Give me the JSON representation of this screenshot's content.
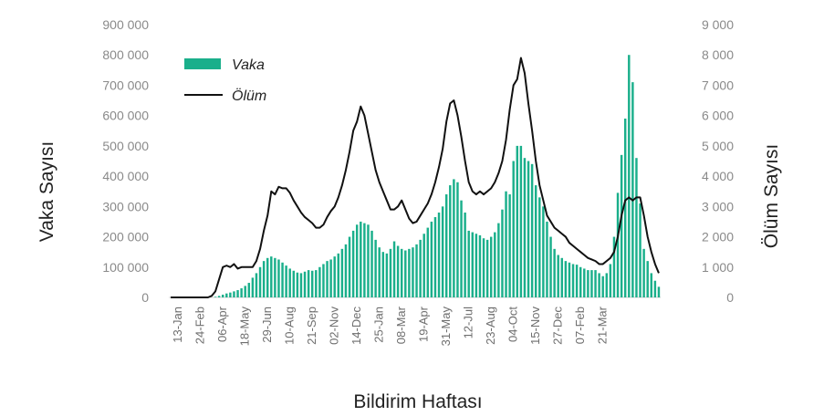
{
  "chart_data": {
    "type": "bar+line",
    "title": "",
    "xlabel": "Bildirim Haftası",
    "ylabel_left": "Vaka Sayısı",
    "ylabel_right": "Ölüm Sayısı",
    "ylim_left": [
      0,
      900000
    ],
    "ylim_right": [
      0,
      9000
    ],
    "left_ticks": [
      "0",
      "100 000",
      "200 000",
      "300 000",
      "400 000",
      "500 000",
      "600 000",
      "700 000",
      "800 000",
      "900 000"
    ],
    "right_ticks": [
      "0",
      "1 000",
      "2 000",
      "3 000",
      "4 000",
      "5 000",
      "6 000",
      "7 000",
      "8 000",
      "9 000"
    ],
    "x_tick_labels": [
      "13-Jan",
      "24-Feb",
      "06-Apr",
      "18-May",
      "29-Jun",
      "10-Aug",
      "21-Sep",
      "02-Nov",
      "14-Dec",
      "25-Jan",
      "08-Mar",
      "19-Apr",
      "31-May",
      "12-Jul",
      "23-Aug",
      "04-Oct",
      "15-Nov",
      "27-Dec",
      "07-Feb",
      "21-Mar"
    ],
    "legend_position": "top-left",
    "colors": {
      "cases": "#1aaf8b",
      "deaths": "#000000"
    },
    "series": [
      {
        "name": "Vaka",
        "type": "bar",
        "axis": "left",
        "values": [
          0,
          0,
          0,
          0,
          0,
          0,
          0,
          0,
          0,
          0,
          0,
          0,
          2000,
          5000,
          9000,
          13000,
          16000,
          20000,
          24000,
          30000,
          38000,
          48000,
          65000,
          80000,
          100000,
          120000,
          130000,
          135000,
          130000,
          125000,
          115000,
          105000,
          95000,
          88000,
          82000,
          80000,
          85000,
          90000,
          88000,
          90000,
          100000,
          110000,
          120000,
          125000,
          135000,
          145000,
          160000,
          175000,
          200000,
          220000,
          240000,
          250000,
          245000,
          240000,
          220000,
          190000,
          165000,
          150000,
          145000,
          160000,
          185000,
          170000,
          160000,
          155000,
          160000,
          165000,
          175000,
          190000,
          210000,
          230000,
          250000,
          265000,
          280000,
          300000,
          340000,
          370000,
          390000,
          380000,
          320000,
          280000,
          220000,
          215000,
          210000,
          205000,
          195000,
          190000,
          200000,
          215000,
          245000,
          290000,
          350000,
          340000,
          450000,
          500000,
          500000,
          460000,
          450000,
          440000,
          370000,
          330000,
          300000,
          250000,
          200000,
          160000,
          140000,
          130000,
          120000,
          115000,
          110000,
          108000,
          100000,
          95000,
          90000,
          90000,
          90000,
          80000,
          70000,
          80000,
          110000,
          200000,
          345000,
          470000,
          590000,
          800000,
          710000,
          460000,
          310000,
          160000,
          120000,
          80000,
          55000,
          35000
        ]
      },
      {
        "name": "Ölüm",
        "type": "line",
        "axis": "right",
        "values": [
          0,
          0,
          0,
          0,
          0,
          0,
          0,
          0,
          0,
          0,
          0,
          50,
          200,
          600,
          1000,
          1050,
          1000,
          1100,
          950,
          1000,
          1000,
          1000,
          1000,
          1200,
          1600,
          2200,
          2700,
          3500,
          3400,
          3650,
          3600,
          3600,
          3450,
          3200,
          3000,
          2800,
          2650,
          2550,
          2450,
          2300,
          2300,
          2400,
          2650,
          2850,
          3000,
          3300,
          3700,
          4200,
          4800,
          5500,
          5800,
          6300,
          6000,
          5400,
          4800,
          4200,
          3800,
          3500,
          3200,
          2900,
          2900,
          3000,
          3200,
          2900,
          2600,
          2450,
          2500,
          2700,
          2900,
          3100,
          3400,
          3800,
          4300,
          4900,
          5800,
          6400,
          6500,
          6000,
          5300,
          4500,
          3800,
          3500,
          3400,
          3500,
          3400,
          3500,
          3600,
          3800,
          4100,
          4500,
          5200,
          6200,
          7000,
          7200,
          7900,
          7400,
          6400,
          5500,
          4500,
          3700,
          3200,
          2700,
          2500,
          2300,
          2200,
          2100,
          2000,
          1800,
          1700,
          1600,
          1500,
          1400,
          1300,
          1250,
          1200,
          1100,
          1100,
          1200,
          1300,
          1500,
          2000,
          2700,
          3200,
          3300,
          3200,
          3300,
          3300,
          2700,
          2000,
          1500,
          1100,
          800
        ]
      }
    ]
  }
}
